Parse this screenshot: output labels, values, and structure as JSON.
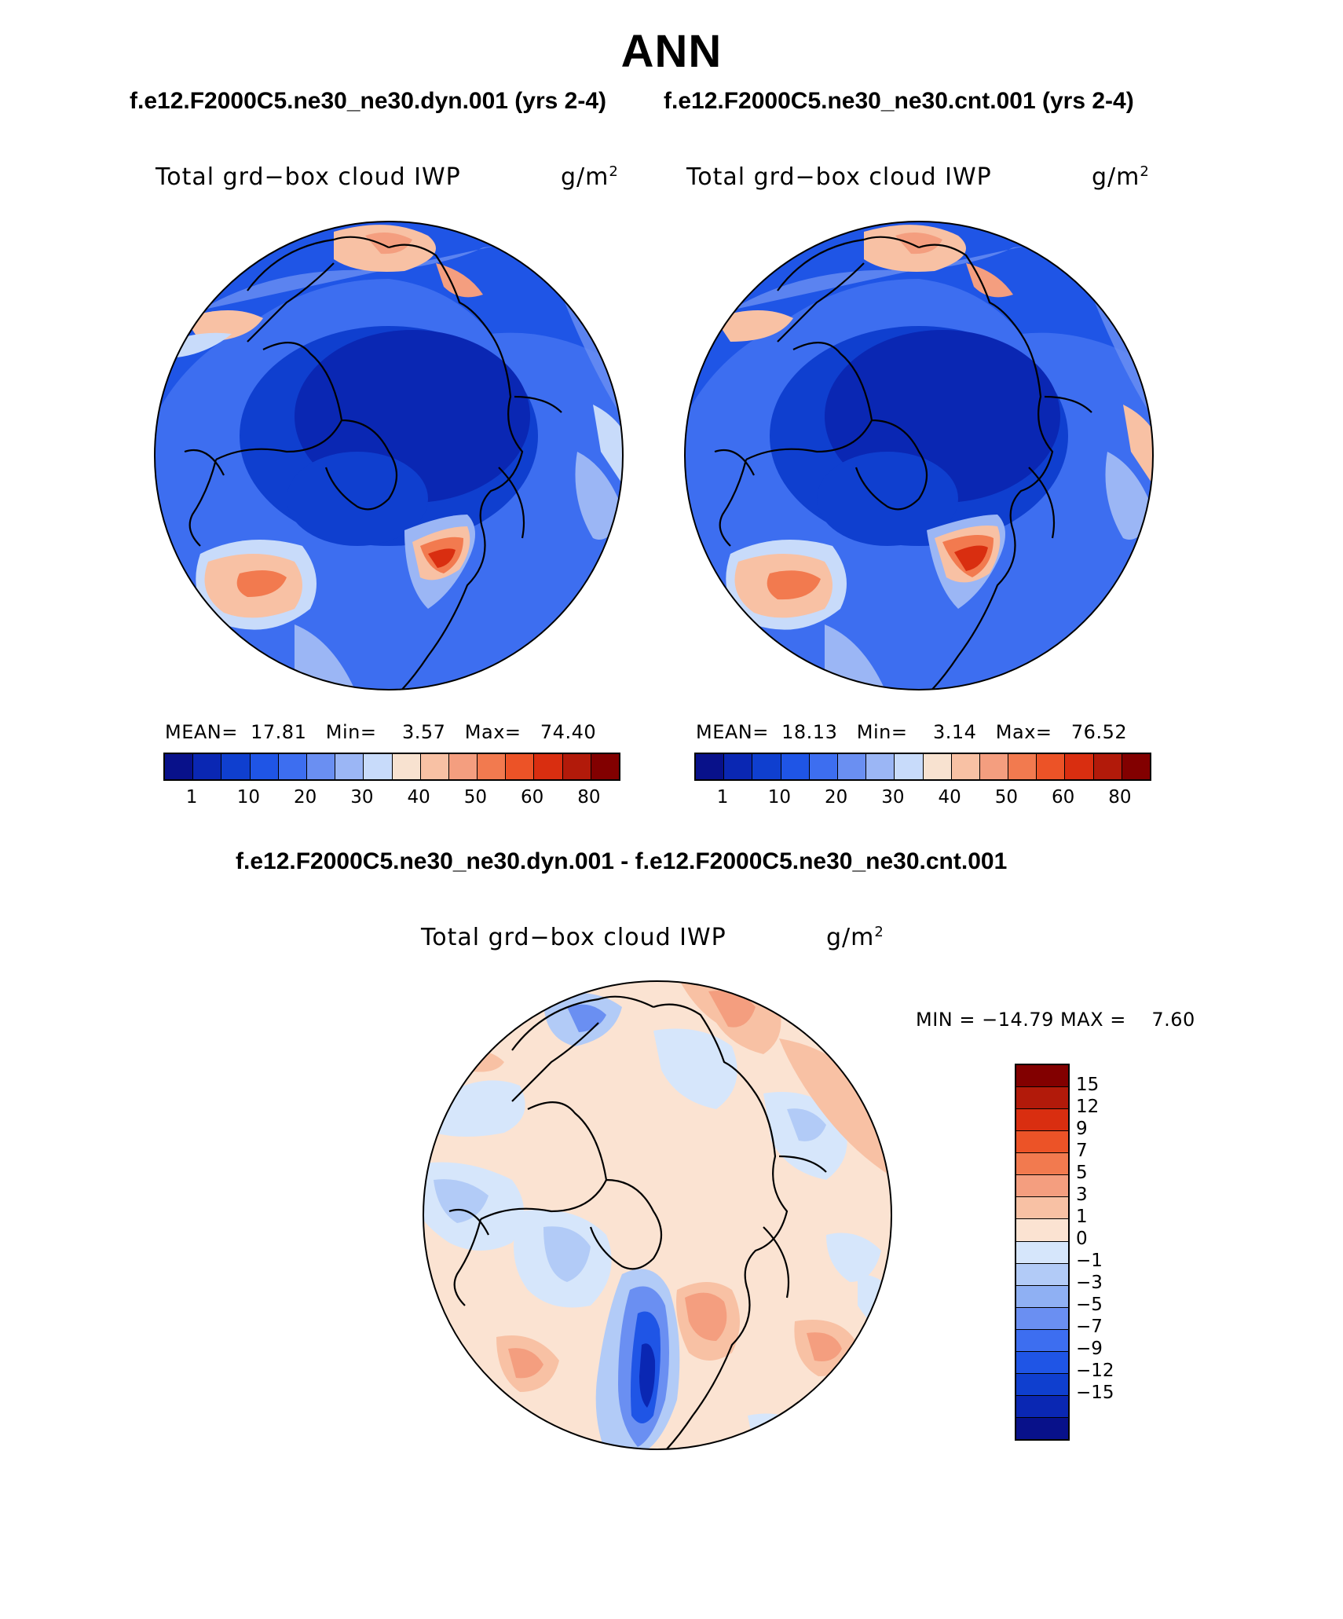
{
  "title": "ANN",
  "top_header": {
    "left": "f.e12.F2000C5.ne30_ne30.dyn.001 (yrs 2-4)",
    "right": "f.e12.F2000C5.ne30_ne30.cnt.001 (yrs 2-4)"
  },
  "panels": [
    {
      "variable": "Total grd−box cloud IWP",
      "units_base": "g/m",
      "units_exp": "2",
      "mean_label": "MEAN=",
      "mean": "17.81",
      "min_label": "Min=",
      "min": "3.57",
      "max_label": "Max=",
      "max": "74.40"
    },
    {
      "variable": "Total grd−box cloud IWP",
      "units_base": "g/m",
      "units_exp": "2",
      "mean_label": "MEAN=",
      "mean": "18.13",
      "min_label": "Min=",
      "min": "3.14",
      "max_label": "Max=",
      "max": "76.52"
    }
  ],
  "colorbar_abs": {
    "colors": [
      "#08118a",
      "#0a27b3",
      "#0f3fcf",
      "#1f55e6",
      "#3d6ef0",
      "#6a8ff2",
      "#9bb6f5",
      "#c8dbfa",
      "#f8e2d0",
      "#f8c1a4",
      "#f49e7f",
      "#f27a4f",
      "#ec5327",
      "#d92e10",
      "#b21a0a",
      "#820000"
    ],
    "tick_labels": [
      "1",
      "10",
      "20",
      "30",
      "40",
      "50",
      "60",
      "80"
    ]
  },
  "diff_header": "f.e12.F2000C5.ne30_ne30.dyn.001 - f.e12.F2000C5.ne30_ne30.cnt.001",
  "diff_panel": {
    "variable": "Total grd−box cloud IWP",
    "units_base": "g/m",
    "units_exp": "2",
    "minmax": "MIN = −14.79 MAX =    7.60"
  },
  "colorbar_diff": {
    "colors_top_to_bottom": [
      "#820000",
      "#b21a0a",
      "#d92e10",
      "#ec5327",
      "#f27a4f",
      "#f49e7f",
      "#f8c1a4",
      "#fbe3d2",
      "#d6e6fb",
      "#b2cbf7",
      "#8fb0f3",
      "#6a8ff2",
      "#3d6ef0",
      "#1f55e6",
      "#0f3fcf",
      "#0a27b3",
      "#08118a"
    ],
    "tick_labels_top_to_bottom": [
      "15",
      "12",
      "9",
      "7",
      "5",
      "3",
      "1",
      "0",
      "−1",
      "−3",
      "−5",
      "−7",
      "−9",
      "−12",
      "−15"
    ]
  }
}
